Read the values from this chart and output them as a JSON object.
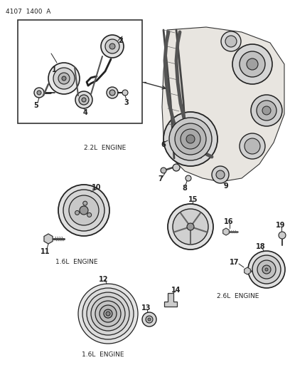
{
  "title_code": "4107  1400  A",
  "background_color": "#ffffff",
  "line_color": "#222222",
  "engine_labels": {
    "2_2L": "2.2L  ENGINE",
    "1_6L_top": "1.6L  ENGINE",
    "1_6L_bottom": "1.6L  ENGINE",
    "2_6L": "2.6L  ENGINE"
  },
  "fig_width": 4.08,
  "fig_height": 5.33,
  "dpi": 100
}
